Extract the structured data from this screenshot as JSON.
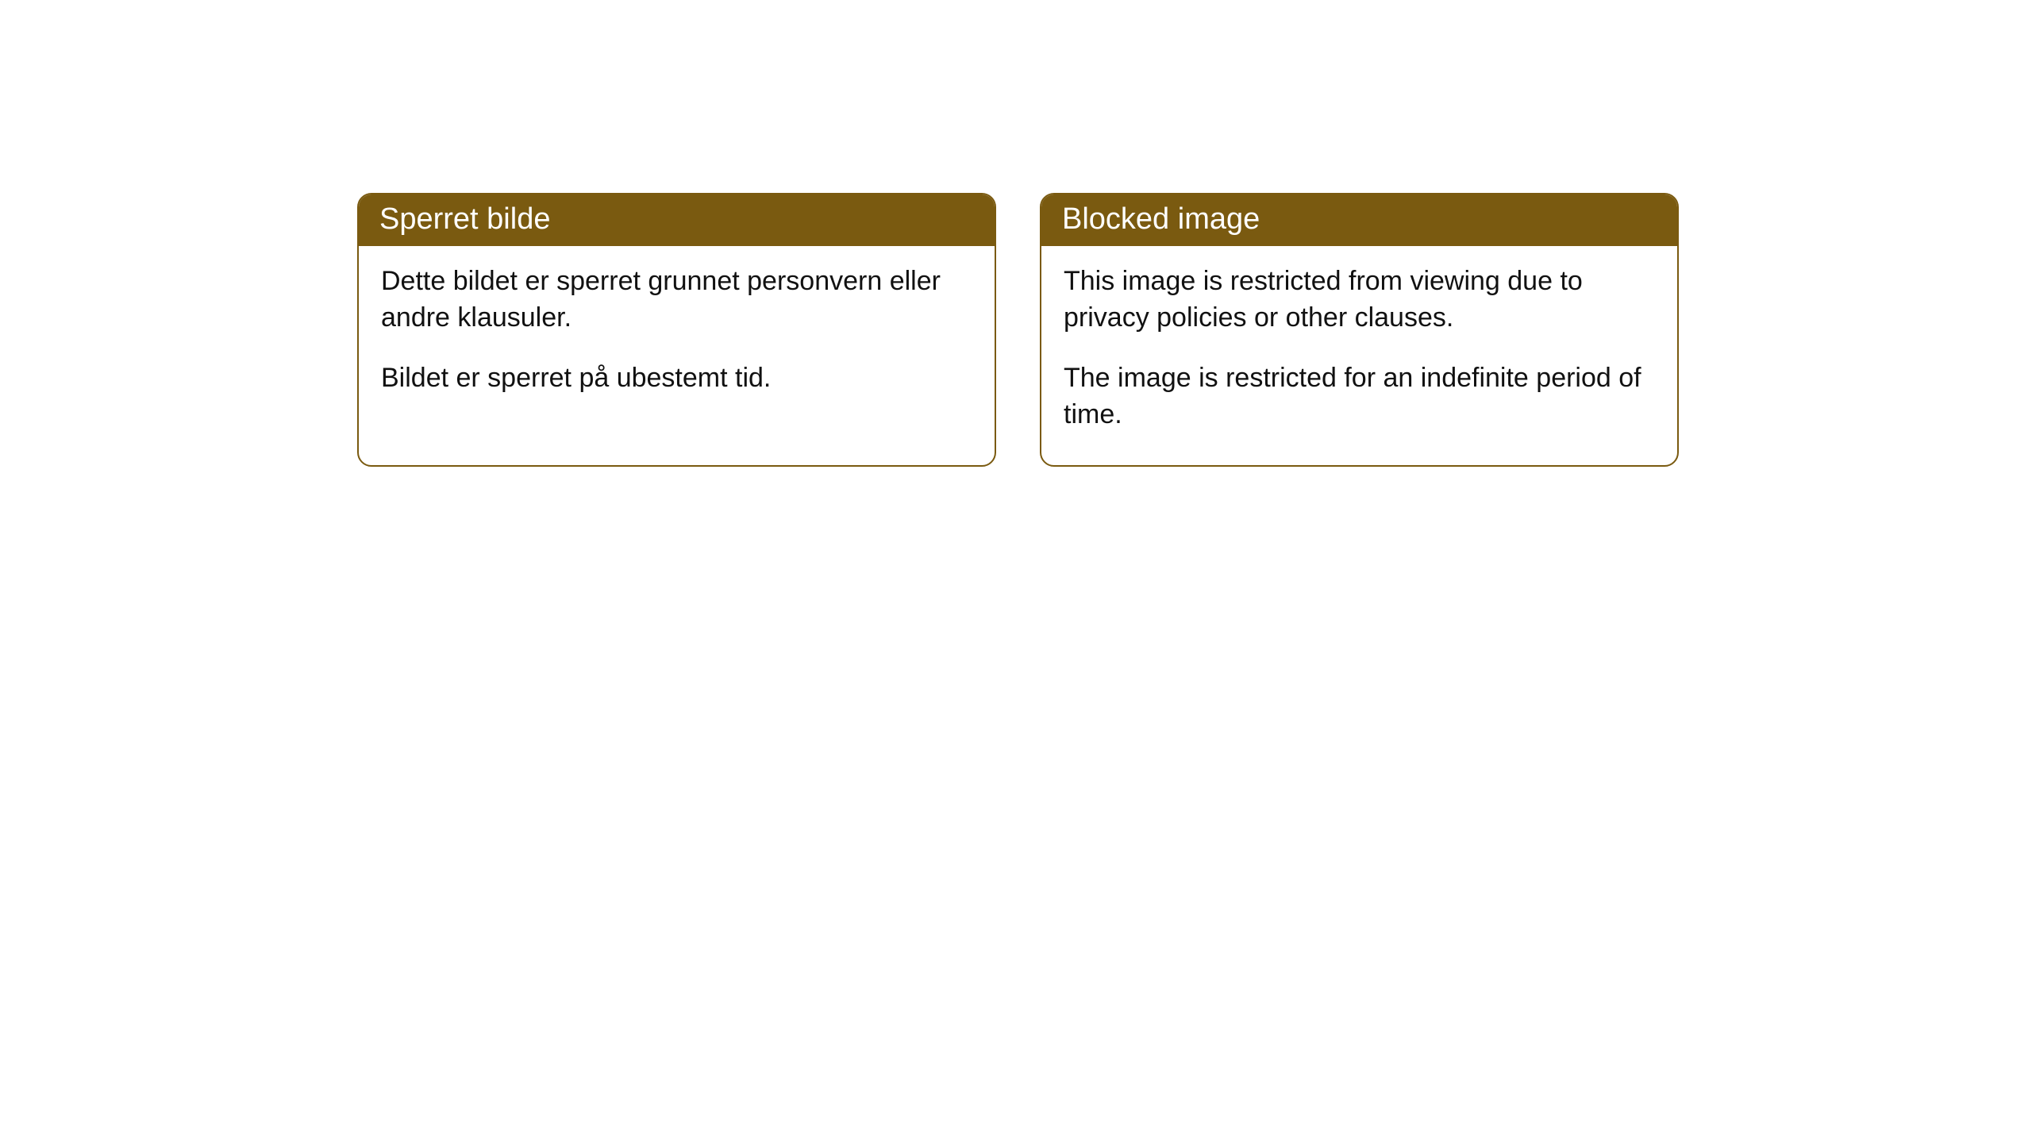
{
  "cards": [
    {
      "title": "Sperret bilde",
      "paragraph1": "Dette bildet er sperret grunnet personvern eller andre klausuler.",
      "paragraph2": "Bildet er sperret på ubestemt tid."
    },
    {
      "title": "Blocked image",
      "paragraph1": "This image is restricted from viewing due to privacy policies or other clauses.",
      "paragraph2": "The image is restricted for an indefinite period of time."
    }
  ],
  "style": {
    "header_bg_color": "#7a5a10",
    "header_text_color": "#ffffff",
    "border_color": "#7a5a10",
    "body_bg_color": "#ffffff",
    "body_text_color": "#111111",
    "border_radius": 18,
    "title_fontsize": 38,
    "body_fontsize": 34
  }
}
